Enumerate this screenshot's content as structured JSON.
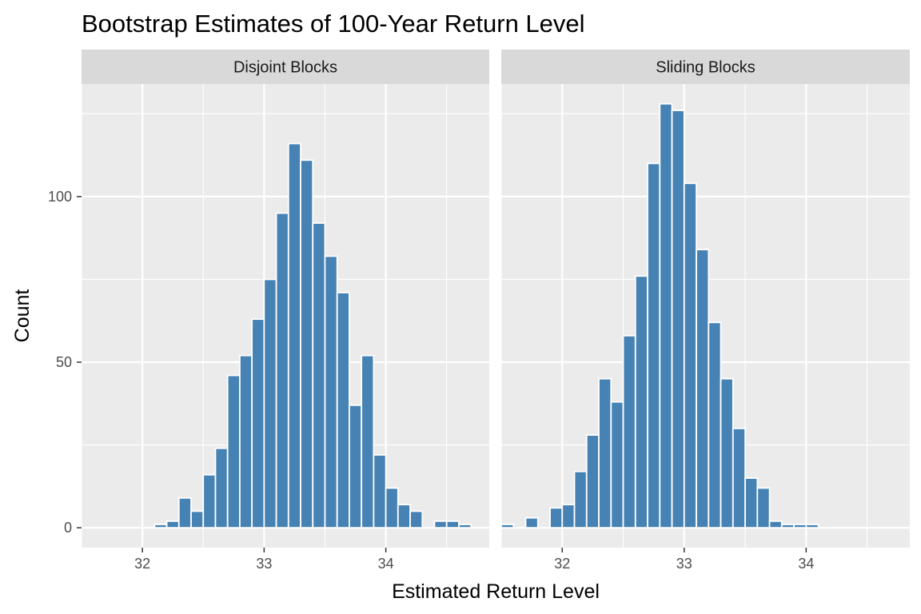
{
  "chart_data": {
    "type": "bar",
    "title": "Bootstrap Estimates of 100-Year Return Level",
    "xlabel": "Estimated Return Level",
    "ylabel": "Count",
    "xlim": [
      31.5,
      34.85
    ],
    "ylim": [
      -6,
      134
    ],
    "x_ticks": [
      32,
      33,
      34
    ],
    "y_ticks": [
      0,
      50,
      100
    ],
    "grid": true,
    "bin_width": 0.1,
    "colors": {
      "bar_fill": "#4682b4",
      "bar_outline": "#ffffff",
      "panel_bg": "#ebebeb",
      "strip_bg": "#d9d9d9",
      "grid": "#ffffff"
    },
    "panels": [
      {
        "label": "Disjoint Blocks",
        "bins": [
          {
            "x": 32.1,
            "count": 1
          },
          {
            "x": 32.2,
            "count": 2
          },
          {
            "x": 32.3,
            "count": 9
          },
          {
            "x": 32.4,
            "count": 5
          },
          {
            "x": 32.5,
            "count": 16
          },
          {
            "x": 32.6,
            "count": 24
          },
          {
            "x": 32.7,
            "count": 46
          },
          {
            "x": 32.8,
            "count": 52
          },
          {
            "x": 32.9,
            "count": 63
          },
          {
            "x": 33.0,
            "count": 75
          },
          {
            "x": 33.1,
            "count": 95
          },
          {
            "x": 33.2,
            "count": 116
          },
          {
            "x": 33.3,
            "count": 111
          },
          {
            "x": 33.4,
            "count": 92
          },
          {
            "x": 33.5,
            "count": 82
          },
          {
            "x": 33.6,
            "count": 71
          },
          {
            "x": 33.7,
            "count": 37
          },
          {
            "x": 33.8,
            "count": 52
          },
          {
            "x": 33.9,
            "count": 22
          },
          {
            "x": 34.0,
            "count": 12
          },
          {
            "x": 34.1,
            "count": 7
          },
          {
            "x": 34.2,
            "count": 5
          },
          {
            "x": 34.3,
            "count": 0
          },
          {
            "x": 34.4,
            "count": 2
          },
          {
            "x": 34.5,
            "count": 2
          },
          {
            "x": 34.6,
            "count": 1
          }
        ]
      },
      {
        "label": "Sliding Blocks",
        "bins": [
          {
            "x": 31.5,
            "count": 1
          },
          {
            "x": 31.6,
            "count": 0
          },
          {
            "x": 31.7,
            "count": 3
          },
          {
            "x": 31.8,
            "count": 0
          },
          {
            "x": 31.9,
            "count": 6
          },
          {
            "x": 32.0,
            "count": 7
          },
          {
            "x": 32.1,
            "count": 17
          },
          {
            "x": 32.2,
            "count": 28
          },
          {
            "x": 32.3,
            "count": 45
          },
          {
            "x": 32.4,
            "count": 38
          },
          {
            "x": 32.5,
            "count": 58
          },
          {
            "x": 32.6,
            "count": 76
          },
          {
            "x": 32.7,
            "count": 110
          },
          {
            "x": 32.8,
            "count": 128
          },
          {
            "x": 32.9,
            "count": 126
          },
          {
            "x": 33.0,
            "count": 104
          },
          {
            "x": 33.1,
            "count": 84
          },
          {
            "x": 33.2,
            "count": 62
          },
          {
            "x": 33.3,
            "count": 45
          },
          {
            "x": 33.4,
            "count": 30
          },
          {
            "x": 33.5,
            "count": 15
          },
          {
            "x": 33.6,
            "count": 12
          },
          {
            "x": 33.7,
            "count": 2
          },
          {
            "x": 33.8,
            "count": 1
          },
          {
            "x": 33.9,
            "count": 1
          },
          {
            "x": 34.0,
            "count": 1
          }
        ]
      }
    ]
  }
}
